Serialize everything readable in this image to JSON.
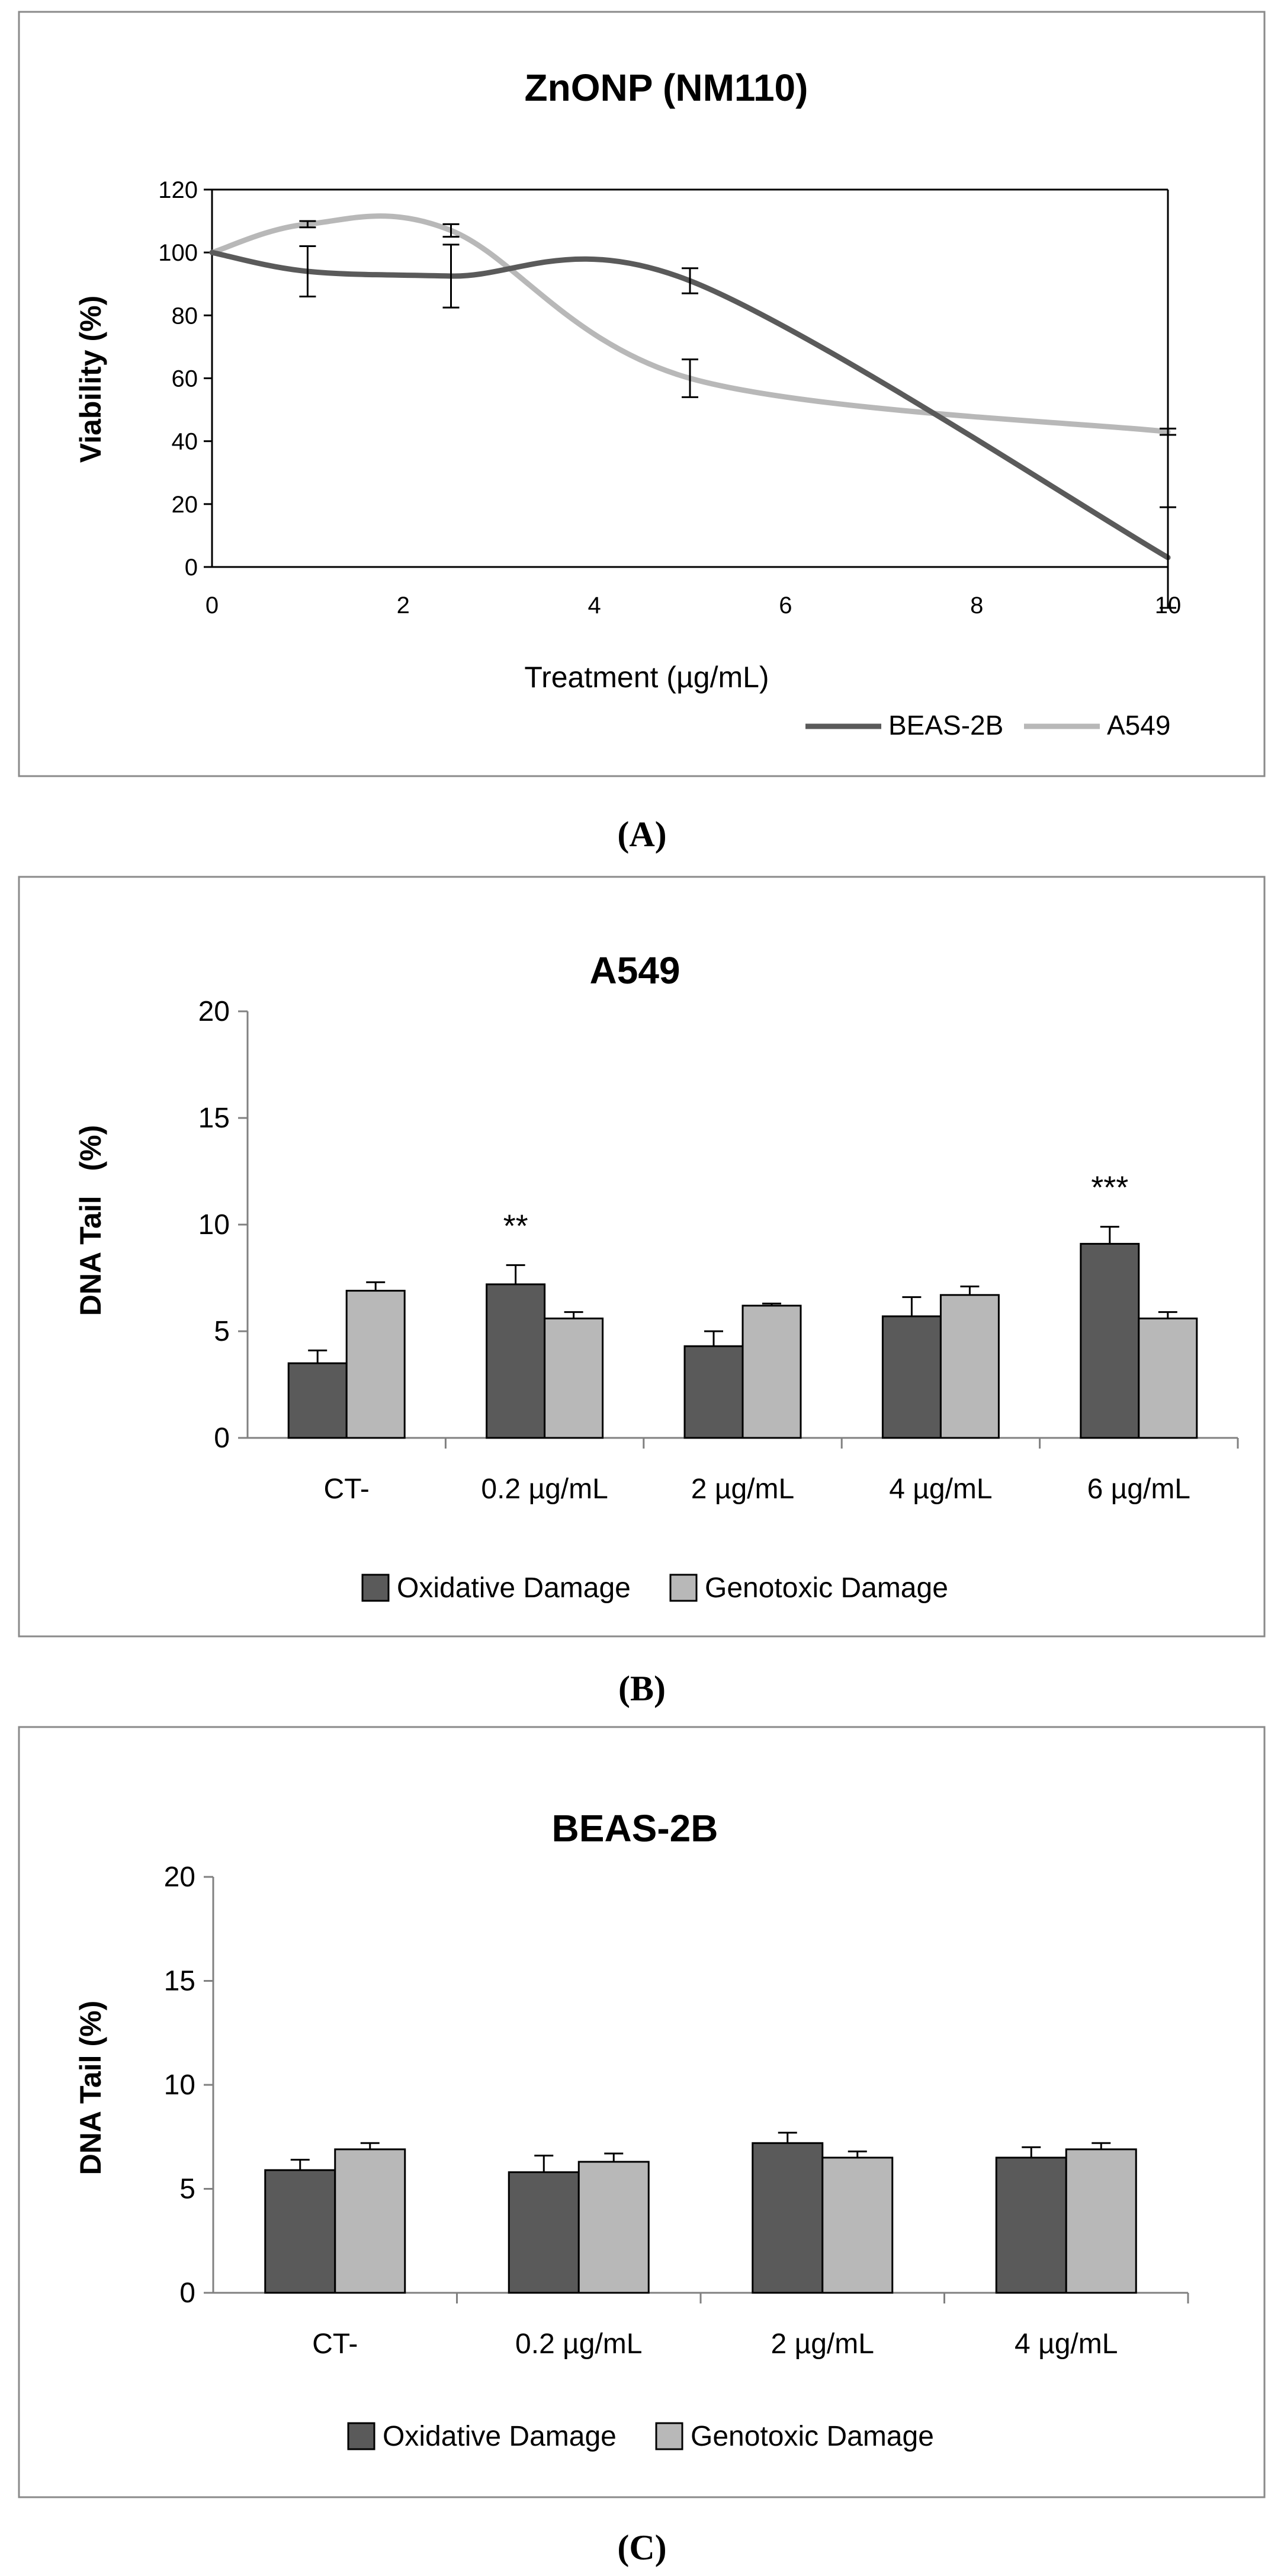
{
  "figure": {
    "panels": [
      "(A)",
      "(B)",
      "(C)"
    ]
  },
  "colors": {
    "dark": "#5a5a5a",
    "light": "#b8b8b8",
    "frame": "#8a8a8a",
    "axis": "#808080",
    "text": "#000000"
  },
  "chart_data": [
    {
      "id": "A",
      "type": "line",
      "title": "ZnONP (NM110)",
      "xlabel": "Treatment (µg/mL)",
      "ylabel": "Viability (%)",
      "xlim": [
        0,
        10
      ],
      "ylim": [
        0,
        120
      ],
      "xticks": [
        0,
        2,
        4,
        6,
        8,
        10
      ],
      "yticks": [
        0,
        20,
        40,
        60,
        80,
        100,
        120
      ],
      "legend": "bottom-right",
      "series": [
        {
          "name": "BEAS-2B",
          "color": "dark",
          "x": [
            0,
            1,
            2.5,
            5,
            10
          ],
          "y": [
            100,
            94,
            92.5,
            91,
            3
          ],
          "err": [
            0,
            8,
            10,
            4,
            16
          ]
        },
        {
          "name": "A549",
          "color": "light",
          "x": [
            0,
            1,
            2.5,
            5,
            10
          ],
          "y": [
            100,
            109,
            107,
            60,
            43
          ],
          "err": [
            0,
            1,
            2,
            6,
            1
          ]
        }
      ]
    },
    {
      "id": "B",
      "type": "bar",
      "title": "A549",
      "ylabel": "DNA Tail   (%)",
      "ylim": [
        0,
        20
      ],
      "yticks": [
        0,
        5,
        10,
        15,
        20
      ],
      "categories": [
        "CT-",
        "0.2 µg/mL",
        "2 µg/mL",
        "4 µg/mL",
        "6 µg/mL"
      ],
      "legend": "bottom-center",
      "series": [
        {
          "name": "Oxidative Damage",
          "color": "dark",
          "values": [
            3.5,
            7.2,
            4.3,
            5.7,
            9.1
          ],
          "err": [
            0.6,
            0.9,
            0.7,
            0.9,
            0.8
          ]
        },
        {
          "name": "Genotoxic Damage",
          "color": "light",
          "values": [
            6.9,
            5.6,
            6.2,
            6.7,
            5.6
          ],
          "err": [
            0.4,
            0.3,
            0.1,
            0.4,
            0.3
          ]
        }
      ],
      "annotations": [
        {
          "category": 1,
          "text": "**"
        },
        {
          "category": 4,
          "text": "***"
        }
      ]
    },
    {
      "id": "C",
      "type": "bar",
      "title": "BEAS-2B",
      "ylabel": "DNA Tail (%)",
      "ylim": [
        0,
        20
      ],
      "yticks": [
        0,
        5,
        10,
        15,
        20
      ],
      "categories": [
        "CT-",
        "0.2 µg/mL",
        "2 µg/mL",
        "4 µg/mL"
      ],
      "legend": "bottom-center",
      "series": [
        {
          "name": "Oxidative Damage",
          "color": "dark",
          "values": [
            5.9,
            5.8,
            7.2,
            6.5
          ],
          "err": [
            0.5,
            0.8,
            0.5,
            0.5
          ]
        },
        {
          "name": "Genotoxic Damage",
          "color": "light",
          "values": [
            6.9,
            6.3,
            6.5,
            6.9
          ],
          "err": [
            0.3,
            0.4,
            0.3,
            0.3
          ]
        }
      ],
      "annotations": []
    }
  ]
}
